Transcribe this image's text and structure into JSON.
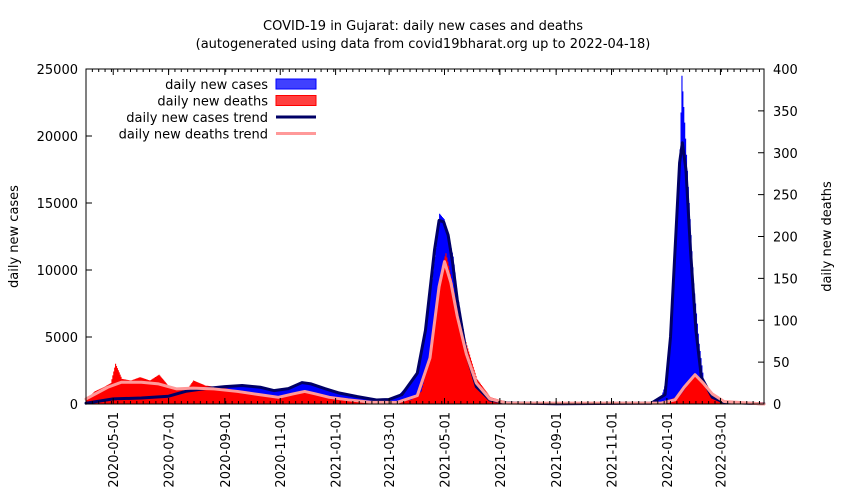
{
  "chart_data": {
    "type": "bar",
    "title": "COVID-19 in Gujarat: daily new cases and deaths",
    "subtitle": "(autogenerated using data from covid19bharat.org up to 2022-04-18)",
    "ylabel": "daily new cases",
    "y2label": "daily new deaths",
    "ylim": [
      0,
      25000
    ],
    "y2lim": [
      0,
      400
    ],
    "xlim": [
      "2020-04-01",
      "2022-04-18"
    ],
    "y_ticks": [
      "0",
      "5000",
      "10000",
      "15000",
      "20000",
      "25000"
    ],
    "y2_ticks": [
      "0",
      "50",
      "100",
      "150",
      "200",
      "250",
      "300",
      "350",
      "400"
    ],
    "x_ticks": [
      "2020-05-01",
      "2020-07-01",
      "2020-09-01",
      "2020-11-01",
      "2021-01-01",
      "2021-03-01",
      "2021-05-01",
      "2021-07-01",
      "2021-09-01",
      "2021-11-01",
      "2022-01-01",
      "2022-03-01"
    ],
    "legend_position": "top-left",
    "series": [
      {
        "name": "daily new cases",
        "style": "bars",
        "axis": "left",
        "color": "#0000ff",
        "points": [
          [
            "2020-04-01",
            50
          ],
          [
            "2020-04-20",
            250
          ],
          [
            "2020-05-01",
            350
          ],
          [
            "2020-05-20",
            380
          ],
          [
            "2020-06-10",
            450
          ],
          [
            "2020-06-30",
            580
          ],
          [
            "2020-07-15",
            900
          ],
          [
            "2020-07-31",
            1100
          ],
          [
            "2020-08-15",
            1180
          ],
          [
            "2020-09-01",
            1300
          ],
          [
            "2020-09-20",
            1400
          ],
          [
            "2020-10-05",
            1300
          ],
          [
            "2020-10-20",
            1050
          ],
          [
            "2020-11-05",
            1100
          ],
          [
            "2020-11-15",
            1250
          ],
          [
            "2020-11-25",
            1600
          ],
          [
            "2020-12-05",
            1450
          ],
          [
            "2020-12-20",
            1100
          ],
          [
            "2021-01-01",
            800
          ],
          [
            "2021-01-20",
            600
          ],
          [
            "2021-02-10",
            300
          ],
          [
            "2021-02-25",
            300
          ],
          [
            "2021-03-10",
            600
          ],
          [
            "2021-03-20",
            1300
          ],
          [
            "2021-04-01",
            2400
          ],
          [
            "2021-04-10",
            5500
          ],
          [
            "2021-04-20",
            11000
          ],
          [
            "2021-04-25",
            14200
          ],
          [
            "2021-04-30",
            13800
          ],
          [
            "2021-05-05",
            12500
          ],
          [
            "2021-05-10",
            11000
          ],
          [
            "2021-05-15",
            8000
          ],
          [
            "2021-05-25",
            4000
          ],
          [
            "2021-06-05",
            1200
          ],
          [
            "2021-06-20",
            300
          ],
          [
            "2021-07-10",
            80
          ],
          [
            "2021-09-01",
            20
          ],
          [
            "2021-11-01",
            40
          ],
          [
            "2021-12-15",
            80
          ],
          [
            "2021-12-25",
            400
          ],
          [
            "2022-01-01",
            2000
          ],
          [
            "2022-01-05",
            6000
          ],
          [
            "2022-01-10",
            12000
          ],
          [
            "2022-01-15",
            19000
          ],
          [
            "2022-01-17",
            24500
          ],
          [
            "2022-01-20",
            21000
          ],
          [
            "2022-01-25",
            15000
          ],
          [
            "2022-01-30",
            9000
          ],
          [
            "2022-02-05",
            4500
          ],
          [
            "2022-02-10",
            1800
          ],
          [
            "2022-02-20",
            600
          ],
          [
            "2022-03-01",
            200
          ],
          [
            "2022-03-15",
            60
          ],
          [
            "2022-04-18",
            20
          ]
        ]
      },
      {
        "name": "daily new deaths",
        "style": "bars",
        "axis": "right",
        "color": "#ff0000",
        "points": [
          [
            "2020-04-01",
            5
          ],
          [
            "2020-04-10",
            15
          ],
          [
            "2020-04-20",
            20
          ],
          [
            "2020-04-28",
            25
          ],
          [
            "2020-05-03",
            48
          ],
          [
            "2020-05-10",
            30
          ],
          [
            "2020-05-20",
            28
          ],
          [
            "2020-05-30",
            32
          ],
          [
            "2020-06-10",
            28
          ],
          [
            "2020-06-20",
            35
          ],
          [
            "2020-06-30",
            22
          ],
          [
            "2020-07-10",
            18
          ],
          [
            "2020-07-20",
            16
          ],
          [
            "2020-07-28",
            28
          ],
          [
            "2020-08-10",
            22
          ],
          [
            "2020-08-25",
            20
          ],
          [
            "2020-09-10",
            17
          ],
          [
            "2020-09-25",
            15
          ],
          [
            "2020-10-10",
            11
          ],
          [
            "2020-10-25",
            7
          ],
          [
            "2020-11-10",
            10
          ],
          [
            "2020-11-20",
            15
          ],
          [
            "2020-11-28",
            16
          ],
          [
            "2020-12-10",
            13
          ],
          [
            "2020-12-25",
            8
          ],
          [
            "2021-01-10",
            6
          ],
          [
            "2021-01-25",
            3
          ],
          [
            "2021-02-15",
            2
          ],
          [
            "2021-03-05",
            2
          ],
          [
            "2021-03-25",
            5
          ],
          [
            "2021-04-05",
            15
          ],
          [
            "2021-04-15",
            60
          ],
          [
            "2021-04-22",
            120
          ],
          [
            "2021-04-28",
            165
          ],
          [
            "2021-05-02",
            180
          ],
          [
            "2021-05-08",
            150
          ],
          [
            "2021-05-15",
            110
          ],
          [
            "2021-05-25",
            70
          ],
          [
            "2021-06-05",
            30
          ],
          [
            "2021-06-20",
            8
          ],
          [
            "2021-07-10",
            2
          ],
          [
            "2021-12-25",
            1
          ],
          [
            "2022-01-15",
            10
          ],
          [
            "2022-01-25",
            25
          ],
          [
            "2022-02-01",
            35
          ],
          [
            "2022-02-10",
            25
          ],
          [
            "2022-02-20",
            10
          ],
          [
            "2022-03-05",
            3
          ],
          [
            "2022-04-18",
            0
          ]
        ]
      },
      {
        "name": "daily new cases trend",
        "style": "line",
        "axis": "left",
        "color": "#000066",
        "points": [
          [
            "2020-04-01",
            60
          ],
          [
            "2020-05-01",
            380
          ],
          [
            "2020-06-01",
            450
          ],
          [
            "2020-07-01",
            580
          ],
          [
            "2020-07-20",
            950
          ],
          [
            "2020-08-10",
            1150
          ],
          [
            "2020-09-01",
            1300
          ],
          [
            "2020-09-20",
            1380
          ],
          [
            "2020-10-10",
            1250
          ],
          [
            "2020-10-25",
            1000
          ],
          [
            "2020-11-10",
            1150
          ],
          [
            "2020-11-25",
            1600
          ],
          [
            "2020-12-05",
            1500
          ],
          [
            "2020-12-20",
            1150
          ],
          [
            "2021-01-05",
            820
          ],
          [
            "2021-01-25",
            550
          ],
          [
            "2021-02-15",
            300
          ],
          [
            "2021-03-01",
            340
          ],
          [
            "2021-03-15",
            700
          ],
          [
            "2021-04-01",
            2300
          ],
          [
            "2021-04-10",
            5500
          ],
          [
            "2021-04-20",
            11500
          ],
          [
            "2021-04-25",
            13700
          ],
          [
            "2021-04-30",
            13600
          ],
          [
            "2021-05-05",
            12600
          ],
          [
            "2021-05-10",
            10500
          ],
          [
            "2021-05-15",
            7800
          ],
          [
            "2021-05-25",
            3800
          ],
          [
            "2021-06-05",
            1300
          ],
          [
            "2021-06-20",
            300
          ],
          [
            "2021-07-10",
            80
          ],
          [
            "2021-09-01",
            20
          ],
          [
            "2021-12-15",
            60
          ],
          [
            "2021-12-30",
            700
          ],
          [
            "2022-01-05",
            5000
          ],
          [
            "2022-01-10",
            11500
          ],
          [
            "2022-01-15",
            18000
          ],
          [
            "2022-01-18",
            19500
          ],
          [
            "2022-01-22",
            17500
          ],
          [
            "2022-01-27",
            11500
          ],
          [
            "2022-02-02",
            5500
          ],
          [
            "2022-02-08",
            2000
          ],
          [
            "2022-02-20",
            500
          ],
          [
            "2022-03-05",
            120
          ],
          [
            "2022-04-18",
            20
          ]
        ]
      },
      {
        "name": "daily new deaths trend",
        "style": "line",
        "axis": "right",
        "color": "#ff9999",
        "points": [
          [
            "2020-04-01",
            6
          ],
          [
            "2020-04-25",
            20
          ],
          [
            "2020-05-10",
            26
          ],
          [
            "2020-06-01",
            26
          ],
          [
            "2020-06-20",
            24
          ],
          [
            "2020-07-10",
            18
          ],
          [
            "2020-07-28",
            19
          ],
          [
            "2020-08-20",
            18
          ],
          [
            "2020-09-15",
            15
          ],
          [
            "2020-10-10",
            11
          ],
          [
            "2020-10-30",
            8
          ],
          [
            "2020-11-15",
            12
          ],
          [
            "2020-11-28",
            15
          ],
          [
            "2020-12-10",
            12
          ],
          [
            "2020-12-25",
            8
          ],
          [
            "2021-01-15",
            5
          ],
          [
            "2021-02-10",
            2
          ],
          [
            "2021-03-10",
            2
          ],
          [
            "2021-04-01",
            10
          ],
          [
            "2021-04-15",
            55
          ],
          [
            "2021-04-25",
            140
          ],
          [
            "2021-05-01",
            170
          ],
          [
            "2021-05-08",
            145
          ],
          [
            "2021-05-15",
            105
          ],
          [
            "2021-05-25",
            60
          ],
          [
            "2021-06-05",
            25
          ],
          [
            "2021-06-20",
            6
          ],
          [
            "2021-07-10",
            1
          ],
          [
            "2021-12-25",
            1
          ],
          [
            "2022-01-10",
            5
          ],
          [
            "2022-01-20",
            20
          ],
          [
            "2022-01-28",
            30
          ],
          [
            "2022-02-01",
            35
          ],
          [
            "2022-02-10",
            25
          ],
          [
            "2022-02-20",
            12
          ],
          [
            "2022-03-05",
            3
          ],
          [
            "2022-04-18",
            0
          ]
        ]
      }
    ]
  }
}
